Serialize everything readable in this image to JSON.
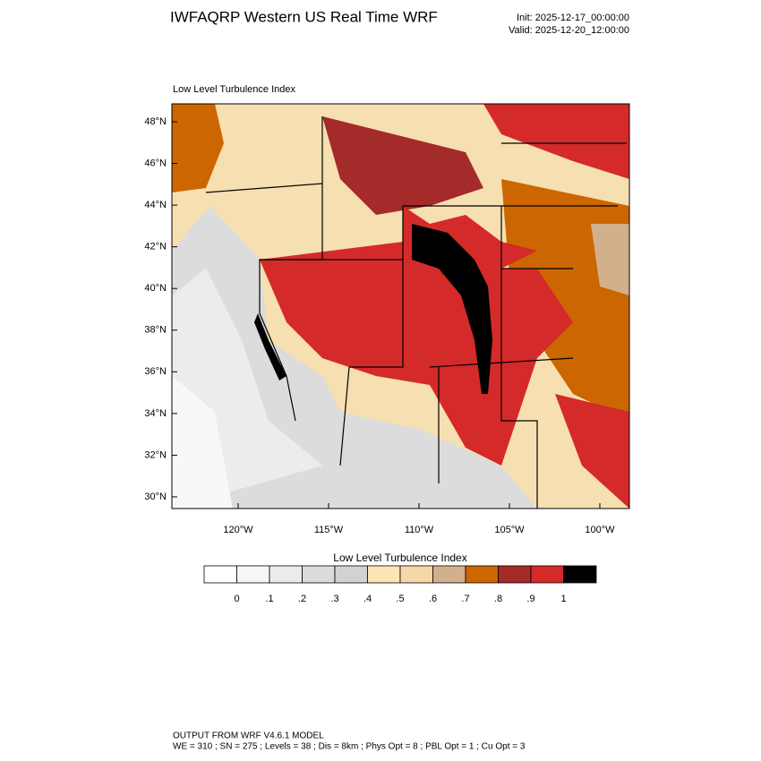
{
  "header": {
    "title": "IWFAQRP Western US Real Time WRF",
    "init": "Init: 2025-12-17_00:00:00",
    "valid": "Valid: 2025-12-20_12:00:00"
  },
  "map": {
    "title": "Low Level Turbulence Index",
    "lat_labels": [
      "48°N",
      "46°N",
      "44°N",
      "42°N",
      "40°N",
      "38°N",
      "36°N",
      "34°N",
      "32°N",
      "30°N"
    ],
    "lon_labels": [
      "120°W",
      "115°W",
      "110°W",
      "105°W",
      "100°W"
    ]
  },
  "colorbar": {
    "title": "Low Level Turbulence Index",
    "labels": [
      "0",
      ".1",
      ".2",
      ".3",
      ".4",
      ".5",
      ".6",
      ".7",
      ".8",
      ".9",
      "1"
    ],
    "colors": [
      "#ffffff",
      "#f6f6f6",
      "#ececec",
      "#dcdcdc",
      "#d2d2d2",
      "#ffe4b5",
      "#f5d7a8",
      "#d2b08c",
      "#cc6600",
      "#a52a2a",
      "#d42a2a",
      "#000000"
    ]
  },
  "footer": {
    "line1": "OUTPUT FROM WRF V4.6.1 MODEL",
    "line2": "WE = 310 ; SN = 275 ; Levels = 38 ; Dis = 8km ; Phys Opt = 8 ; PBL Opt = 1 ; Cu Opt = 3"
  }
}
